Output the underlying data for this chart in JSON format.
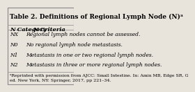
{
  "title": "Table 2. Definitions of Regional Lymph Node (N)ᵃ",
  "col1_header": "N Category",
  "col2_header": "N Criteria",
  "rows": [
    [
      "NX",
      "Regional lymph nodes cannot be assessed."
    ],
    [
      "N0",
      "No regional lymph node metastasis."
    ],
    [
      "N1",
      "Metastasis in one or two regional lymph nodes."
    ],
    [
      "N2",
      "Metastasis in three or more regional lymph nodes."
    ]
  ],
  "footnote": "ᵃReprinted with permission from AJCC: Small Intestine. In: Amin MB, Edge SR, G\ned. New York, NY: Springer, 2017, pp 221–34.",
  "bg_color": "#e8e4dc",
  "title_fontsize": 6.5,
  "header_fontsize": 6.0,
  "cell_fontsize": 5.5,
  "footnote_fontsize": 4.5,
  "border_color": "#888888",
  "text_color": "#000000"
}
